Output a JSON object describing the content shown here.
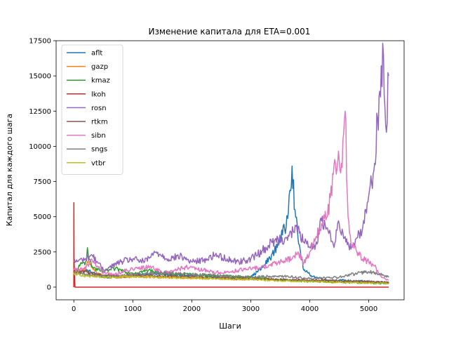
{
  "chart_data": {
    "type": "line",
    "title": "Изменение капитала для ETA=0.001",
    "xlabel": "Шаги",
    "ylabel": "Капитал для каждого шага",
    "xlim": [
      -300,
      5600
    ],
    "ylim": [
      -900,
      17500
    ],
    "xticks": [
      0,
      1000,
      2000,
      3000,
      4000,
      5000
    ],
    "xtick_labels": [
      "0",
      "1000",
      "2000",
      "3000",
      "4000",
      "5000"
    ],
    "yticks": [
      0,
      2500,
      5000,
      7500,
      10000,
      12500,
      15000,
      17500
    ],
    "ytick_labels": [
      "0",
      "2500",
      "5000",
      "7500",
      "10000",
      "12500",
      "15000",
      "17500"
    ],
    "grid": false,
    "legend_position": "top-left",
    "series": [
      {
        "name": "aflt",
        "color": "#1f77b4",
        "x": [
          0,
          100,
          200,
          300,
          400,
          500,
          700,
          1000,
          1300,
          1500,
          2000,
          2500,
          3000,
          3200,
          3400,
          3500,
          3600,
          3650,
          3700,
          3750,
          3800,
          3900,
          4000,
          4100,
          4200,
          4300,
          4500,
          4700,
          5000,
          5200,
          5340
        ],
        "values": [
          1000,
          1100,
          1200,
          1050,
          900,
          700,
          700,
          800,
          950,
          900,
          800,
          650,
          700,
          1400,
          2500,
          3500,
          4300,
          6500,
          8600,
          5500,
          3500,
          1200,
          900,
          700,
          600,
          500,
          500,
          450,
          400,
          350,
          300
        ]
      },
      {
        "name": "gazp",
        "color": "#ff7f0e",
        "x": [
          0,
          50,
          100,
          200,
          250,
          300,
          350,
          400,
          500,
          700,
          1000,
          1500,
          2000,
          2500,
          3000,
          3500,
          4000,
          4500,
          5000,
          5340
        ],
        "values": [
          1000,
          1100,
          1200,
          1300,
          1800,
          1400,
          1200,
          1000,
          800,
          700,
          750,
          700,
          650,
          600,
          550,
          500,
          450,
          400,
          350,
          300
        ]
      },
      {
        "name": "kmaz",
        "color": "#2ca02c",
        "x": [
          0,
          100,
          200,
          230,
          260,
          300,
          400,
          500,
          700,
          1000,
          1300,
          1500,
          2000,
          2500,
          3000,
          3500,
          4000,
          4500,
          5000,
          5340
        ],
        "values": [
          1000,
          1500,
          1800,
          2800,
          2000,
          1500,
          1200,
          1100,
          1300,
          1000,
          1200,
          1000,
          900,
          800,
          700,
          500,
          400,
          350,
          300,
          250
        ]
      },
      {
        "name": "lkoh",
        "color": "#d62728",
        "x": [
          0,
          1,
          5,
          10,
          20,
          100,
          500,
          1000,
          2000,
          3000,
          4000,
          5000,
          5340
        ],
        "values": [
          0,
          6000,
          2000,
          1000,
          0,
          0,
          0,
          0,
          0,
          0,
          0,
          0,
          0
        ]
      },
      {
        "name": "rosn",
        "color": "#9467bd",
        "x": [
          0,
          200,
          300,
          400,
          500,
          600,
          800,
          1000,
          1200,
          1400,
          1600,
          1800,
          2000,
          2200,
          2400,
          2600,
          2800,
          3000,
          3200,
          3400,
          3600,
          3800,
          3900,
          4000,
          4100,
          4200,
          4300,
          4400,
          4500,
          4600,
          4700,
          4800,
          4900,
          5000,
          5100,
          5150,
          5200,
          5250,
          5300,
          5340
        ],
        "values": [
          1800,
          2000,
          2300,
          1800,
          1200,
          1400,
          1800,
          2000,
          1800,
          2500,
          2000,
          2200,
          1800,
          1900,
          2300,
          2000,
          1800,
          2000,
          2600,
          3300,
          3500,
          4200,
          3200,
          2800,
          3000,
          4700,
          4200,
          3000,
          4500,
          3600,
          2700,
          3500,
          4300,
          6500,
          8800,
          12000,
          13500,
          16500,
          11000,
          15000
        ]
      },
      {
        "name": "rtkm",
        "color": "#8c564b",
        "x": [
          0,
          200,
          400,
          700,
          1000,
          1500,
          2000,
          2500,
          3000,
          3500,
          4000,
          4500,
          5000,
          5340
        ],
        "values": [
          1000,
          1100,
          900,
          800,
          850,
          800,
          750,
          650,
          600,
          550,
          500,
          450,
          400,
          350
        ]
      },
      {
        "name": "sibn",
        "color": "#e377c2",
        "x": [
          0,
          200,
          300,
          400,
          500,
          700,
          900,
          1100,
          1300,
          1500,
          1700,
          1900,
          2200,
          2500,
          2800,
          3000,
          3300,
          3500,
          3700,
          3800,
          3900,
          4000,
          4100,
          4200,
          4300,
          4400,
          4500,
          4550,
          4600,
          4650,
          4700,
          4800,
          4900,
          5000,
          5100,
          5200,
          5300,
          5340
        ],
        "values": [
          1200,
          1300,
          2000,
          1500,
          1000,
          900,
          1200,
          1300,
          1500,
          1000,
          1200,
          1400,
          1200,
          1000,
          1200,
          1300,
          1500,
          1800,
          2000,
          2500,
          1700,
          2500,
          3500,
          4500,
          5000,
          8000,
          9000,
          8500,
          12500,
          5000,
          3000,
          2500,
          2000,
          1800,
          1500,
          800,
          500,
          500
        ]
      },
      {
        "name": "sngs",
        "color": "#7f7f7f",
        "x": [
          0,
          200,
          400,
          700,
          1000,
          1500,
          2000,
          2500,
          3000,
          3500,
          4000,
          4500,
          4700,
          5000,
          5200,
          5340
        ],
        "values": [
          1000,
          900,
          800,
          750,
          900,
          1000,
          900,
          800,
          700,
          800,
          600,
          700,
          900,
          1100,
          900,
          700
        ]
      },
      {
        "name": "vtbr",
        "color": "#bcbd22",
        "x": [
          0,
          100,
          200,
          500,
          1000,
          1500,
          2000,
          2500,
          3000,
          3500,
          4000,
          4500,
          5000,
          5340
        ],
        "values": [
          1000,
          900,
          800,
          700,
          750,
          700,
          650,
          600,
          550,
          450,
          400,
          350,
          300,
          250
        ]
      }
    ]
  }
}
